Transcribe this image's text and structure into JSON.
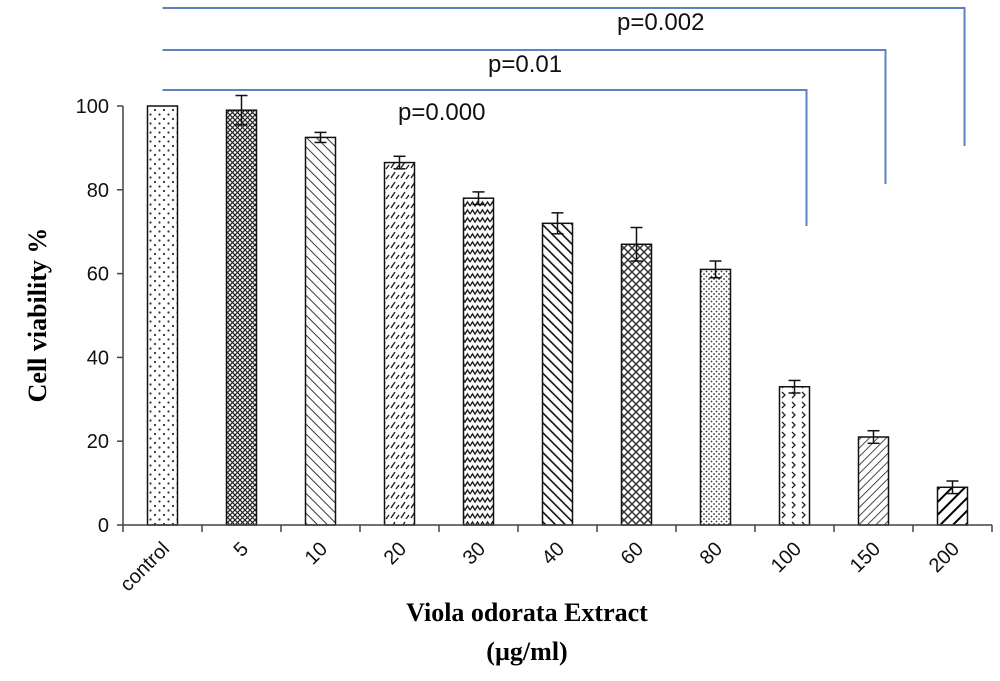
{
  "chart_data": {
    "type": "bar",
    "categories": [
      "control",
      "5",
      "10",
      "20",
      "30",
      "40",
      "60",
      "80",
      "100",
      "150",
      "200"
    ],
    "values": [
      100,
      99,
      92.5,
      86.5,
      78,
      72,
      67,
      61,
      33,
      21,
      9
    ],
    "errors": [
      0,
      3.5,
      1.2,
      1.5,
      1.5,
      2.5,
      4,
      2,
      1.5,
      1.5,
      1.5
    ],
    "ylabel": "Cell viability %",
    "xlabel_line1": "Viola odorata Extract",
    "xlabel_line2": "(µg/ml)",
    "ylim": [
      0,
      100
    ],
    "yticks": [
      0,
      20,
      40,
      60,
      80,
      100
    ],
    "grid": false,
    "bar_patterns": [
      "dots-sparse",
      "crosshatch",
      "diag-back",
      "dash-diag",
      "zigzag",
      "diag-back-bold",
      "diag-cross",
      "dots-dense",
      "chevrons",
      "diag-fwd",
      "diag-fwd-bold"
    ],
    "annotations": [
      {
        "label": "p=0.000",
        "to": "100"
      },
      {
        "label": "p=0.01",
        "to": "150"
      },
      {
        "label": "p=0.002",
        "to": "200"
      }
    ],
    "bracket_color": "#5b84bf"
  }
}
